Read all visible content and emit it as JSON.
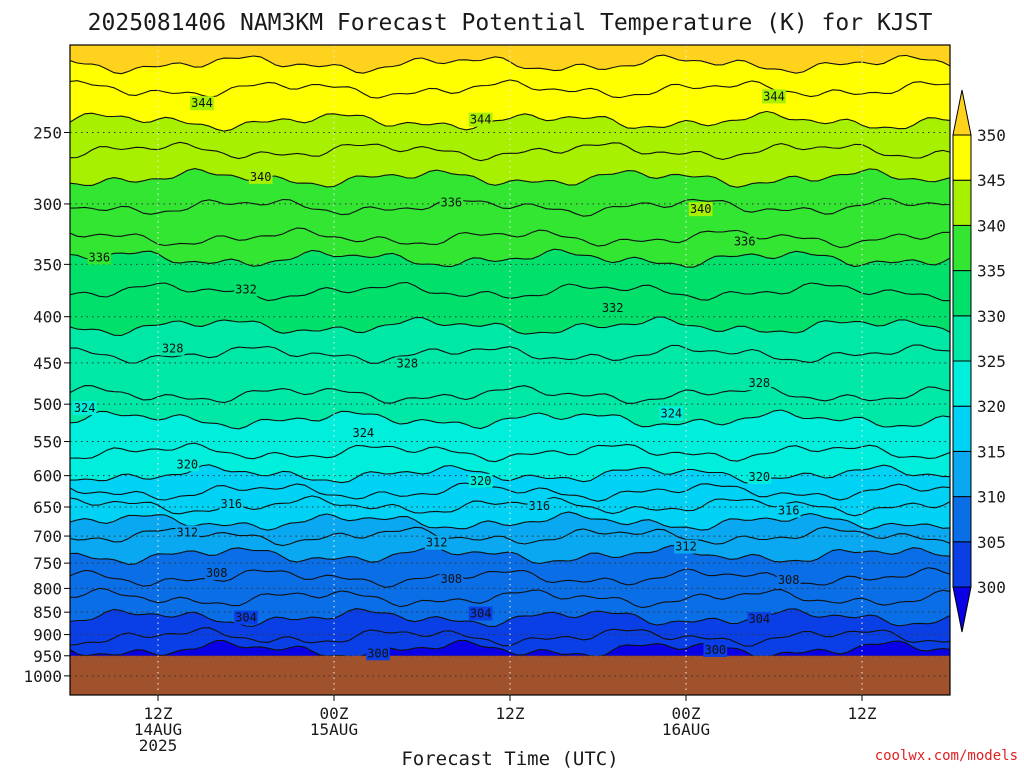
{
  "chart_data": {
    "type": "heatmap",
    "title": "2025081406 NAM3KM Forecast Potential Temperature (K) for KJST",
    "xlabel": "Forecast Time (UTC)",
    "ylabel": "",
    "credit": "coolwx.com/models",
    "y_scale": "log",
    "ylim": [
      1050,
      200
    ],
    "y_ticks": [
      250,
      300,
      350,
      400,
      450,
      500,
      550,
      600,
      650,
      700,
      750,
      800,
      850,
      900,
      950,
      1000
    ],
    "x_ticks": [
      {
        "hour": 6,
        "lines": [
          "12Z",
          "14AUG",
          "2025"
        ]
      },
      {
        "hour": 18,
        "lines": [
          "00Z",
          "15AUG"
        ]
      },
      {
        "hour": 30,
        "lines": [
          "12Z"
        ]
      },
      {
        "hour": 42,
        "lines": [
          "00Z",
          "16AUG"
        ]
      },
      {
        "hour": 54,
        "lines": [
          "12Z"
        ]
      }
    ],
    "xlim": [
      0,
      60
    ],
    "ground_pressure": 950,
    "colorbar": {
      "levels": [
        300,
        305,
        310,
        315,
        320,
        325,
        330,
        335,
        340,
        345,
        350
      ],
      "colors": [
        "#0a00e6",
        "#0a3fe6",
        "#0a6ee6",
        "#0aa8f0",
        "#00d2f5",
        "#00eedc",
        "#00e8a6",
        "#00e06a",
        "#32e632",
        "#a6f000",
        "#ffff00",
        "#ffd21e"
      ]
    },
    "contour_interval": 2,
    "contours": [
      {
        "level": 300,
        "p": 935,
        "label_at": [
          [
            44,
            936
          ],
          [
            21,
            944
          ]
        ]
      },
      {
        "level": 302,
        "p": 905
      },
      {
        "level": 304,
        "p": 862,
        "label_at": [
          [
            12,
            862
          ],
          [
            28,
            853
          ],
          [
            47,
            865
          ]
        ]
      },
      {
        "level": 306,
        "p": 820
      },
      {
        "level": 308,
        "p": 778,
        "label_at": [
          [
            10,
            769
          ],
          [
            26,
            781
          ],
          [
            49,
            783
          ]
        ]
      },
      {
        "level": 310,
        "p": 735
      },
      {
        "level": 312,
        "p": 700,
        "label_at": [
          [
            8,
            694
          ],
          [
            25,
            712
          ],
          [
            42,
            719
          ]
        ]
      },
      {
        "level": 314,
        "p": 675
      },
      {
        "level": 316,
        "p": 648,
        "label_at": [
          [
            11,
            645
          ],
          [
            32,
            648
          ],
          [
            49,
            656
          ]
        ]
      },
      {
        "level": 318,
        "p": 625
      },
      {
        "level": 320,
        "p": 598,
        "label_at": [
          [
            8,
            583
          ],
          [
            28,
            608
          ],
          [
            47,
            602
          ]
        ]
      },
      {
        "level": 322,
        "p": 565
      },
      {
        "level": 324,
        "p": 520,
        "label_at": [
          [
            1,
            505
          ],
          [
            20,
            538
          ],
          [
            41,
            512
          ]
        ]
      },
      {
        "level": 326,
        "p": 488
      },
      {
        "level": 328,
        "p": 440,
        "label_at": [
          [
            7,
            434
          ],
          [
            23,
            451
          ],
          [
            47,
            474
          ]
        ]
      },
      {
        "level": 330,
        "p": 410
      },
      {
        "level": 332,
        "p": 375,
        "label_at": [
          [
            12,
            373
          ],
          [
            37,
            391
          ]
        ]
      },
      {
        "level": 334,
        "p": 345
      },
      {
        "level": 336,
        "p": 327,
        "label_at": [
          [
            2,
            344
          ],
          [
            26,
            299
          ],
          [
            46,
            330
          ]
        ]
      },
      {
        "level": 338,
        "p": 302
      },
      {
        "level": 340,
        "p": 281,
        "label_at": [
          [
            13,
            280
          ],
          [
            43,
            304
          ]
        ]
      },
      {
        "level": 342,
        "p": 262
      },
      {
        "level": 344,
        "p": 243,
        "label_at": [
          [
            9,
            232
          ],
          [
            28,
            242
          ],
          [
            48,
            228
          ]
        ]
      },
      {
        "level": 346,
        "p": 224
      },
      {
        "level": 348,
        "p": 210
      }
    ]
  }
}
